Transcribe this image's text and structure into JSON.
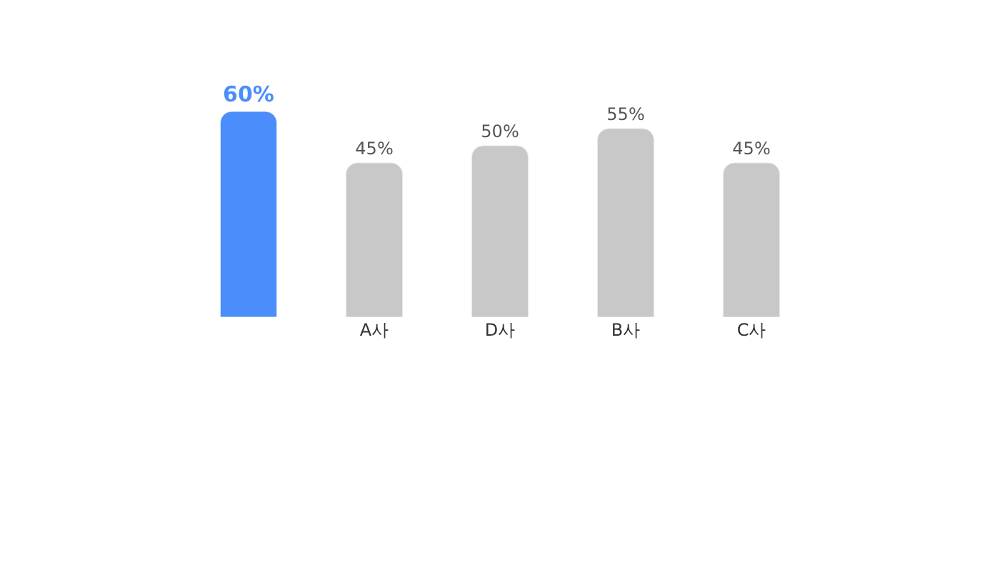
{
  "chart_data": {
    "type": "bar",
    "categories": [
      null,
      "A사",
      "D사",
      "B사",
      "C사"
    ],
    "values": [
      60,
      45,
      50,
      55,
      45
    ],
    "value_labels": [
      "60%",
      "45%",
      "50%",
      "55%",
      "45%"
    ],
    "colors": [
      "#4a8dfb",
      "#c8c8c8",
      "#c8c8c8",
      "#c8c8c8",
      "#c8c8c8"
    ],
    "tick_labels": "x"
  }
}
